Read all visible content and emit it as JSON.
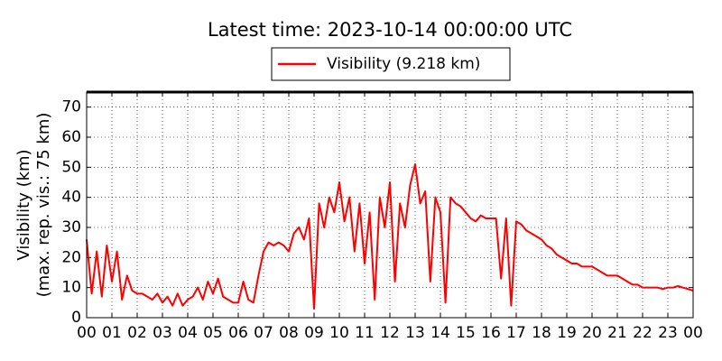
{
  "chart_data": {
    "type": "line",
    "title": "Latest time: 2023-10-14 00:00:00 UTC",
    "ylabel": [
      "Visibility (km)",
      "(max. rep. vis.: 75 km)"
    ],
    "x": [
      0,
      0.2,
      0.4,
      0.6,
      0.8,
      1,
      1.2,
      1.4,
      1.6,
      1.8,
      2,
      2.2,
      2.4,
      2.6,
      2.8,
      3,
      3.2,
      3.4,
      3.6,
      3.8,
      4,
      4.2,
      4.4,
      4.6,
      4.8,
      5,
      5.2,
      5.4,
      5.6,
      5.8,
      6,
      6.2,
      6.4,
      6.6,
      6.8,
      7,
      7.2,
      7.4,
      7.6,
      7.8,
      8,
      8.2,
      8.4,
      8.6,
      8.8,
      9,
      9.2,
      9.4,
      9.6,
      9.8,
      10,
      10.2,
      10.4,
      10.6,
      10.8,
      11,
      11.2,
      11.4,
      11.6,
      11.8,
      12,
      12.2,
      12.4,
      12.6,
      12.8,
      13,
      13.2,
      13.4,
      13.6,
      13.8,
      14,
      14.2,
      14.4,
      14.6,
      14.8,
      15,
      15.2,
      15.4,
      15.6,
      15.8,
      16,
      16.2,
      16.4,
      16.6,
      16.8,
      17,
      17.2,
      17.4,
      17.6,
      17.8,
      18,
      18.2,
      18.4,
      18.6,
      18.8,
      19,
      19.2,
      19.4,
      19.6,
      19.8,
      20,
      20.2,
      20.4,
      20.6,
      20.8,
      21,
      21.2,
      21.4,
      21.6,
      21.8,
      22,
      22.2,
      22.4,
      22.6,
      22.8,
      23,
      23.2,
      23.4,
      23.6,
      23.8,
      24
    ],
    "series": [
      {
        "name": "Visibility (9.218 km)",
        "color": "#ff0000",
        "values": [
          26,
          8,
          22,
          7,
          24,
          12,
          22,
          6,
          14,
          9,
          8,
          8,
          7,
          6,
          8,
          5,
          7,
          4,
          8,
          4,
          6,
          7,
          10,
          6,
          12,
          8,
          13,
          7,
          6,
          5,
          5,
          12,
          6,
          5,
          14,
          22,
          25,
          24,
          25,
          24,
          22,
          28,
          30,
          26,
          33,
          3,
          38,
          30,
          40,
          35,
          45,
          32,
          40,
          22,
          38,
          18,
          35,
          6,
          40,
          30,
          45,
          12,
          38,
          30,
          44,
          51,
          38,
          42,
          12,
          40,
          35,
          5,
          40,
          38,
          37,
          35,
          33,
          32,
          34,
          33,
          33,
          33,
          13,
          33,
          4,
          32,
          31,
          29,
          28,
          27,
          26,
          24,
          23,
          21,
          20,
          19,
          18,
          18,
          17,
          17,
          17,
          16,
          15,
          14,
          14,
          14,
          13,
          12,
          11,
          11,
          10,
          10,
          10,
          10,
          9.5,
          10,
          10,
          10.5,
          10,
          9.5,
          9
        ]
      }
    ],
    "xlim": [
      0,
      24
    ],
    "ylim": [
      0,
      75
    ],
    "xticks": [
      {
        "value": 0,
        "label": "00"
      },
      {
        "value": 1,
        "label": "01"
      },
      {
        "value": 2,
        "label": "02"
      },
      {
        "value": 3,
        "label": "03"
      },
      {
        "value": 4,
        "label": "04"
      },
      {
        "value": 5,
        "label": "05"
      },
      {
        "value": 6,
        "label": "06"
      },
      {
        "value": 7,
        "label": "07"
      },
      {
        "value": 8,
        "label": "08"
      },
      {
        "value": 9,
        "label": "09"
      },
      {
        "value": 10,
        "label": "10"
      },
      {
        "value": 11,
        "label": "11"
      },
      {
        "value": 12,
        "label": "12"
      },
      {
        "value": 13,
        "label": "13"
      },
      {
        "value": 14,
        "label": "14"
      },
      {
        "value": 15,
        "label": "15"
      },
      {
        "value": 16,
        "label": "16"
      },
      {
        "value": 17,
        "label": "17"
      },
      {
        "value": 18,
        "label": "18"
      },
      {
        "value": 19,
        "label": "19"
      },
      {
        "value": 20,
        "label": "20"
      },
      {
        "value": 21,
        "label": "21"
      },
      {
        "value": 22,
        "label": "22"
      },
      {
        "value": 23,
        "label": "23"
      },
      {
        "value": 24,
        "label": "00"
      }
    ],
    "yticks": [
      0,
      10,
      20,
      30,
      40,
      50,
      60,
      70
    ],
    "grid": true
  }
}
